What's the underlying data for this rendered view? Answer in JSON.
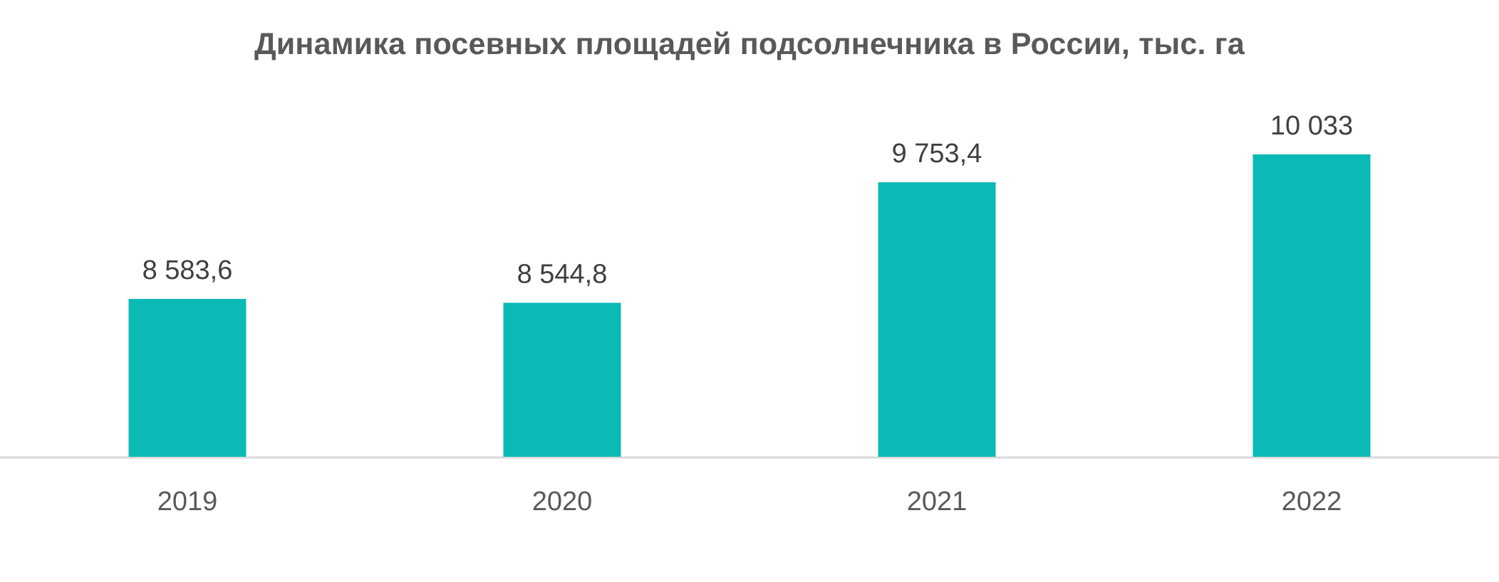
{
  "chart_data": {
    "type": "bar",
    "title": "Динамика посевных площадей подсолнечника в России, тыс. га",
    "categories": [
      "2019",
      "2020",
      "2021",
      "2022"
    ],
    "values": [
      8583.6,
      8544.8,
      9753.4,
      10033
    ],
    "value_labels": [
      "8 583,6",
      "8 544,8",
      "9 753,4",
      "10 033"
    ],
    "xlabel": "",
    "ylabel": "",
    "ylim": [
      7000,
      10500
    ],
    "grid": false,
    "legend": "none",
    "colors": {
      "bar": "#0BBAB5",
      "axis": "#D9D9D9",
      "title": "#595959",
      "label": "#404040",
      "tick": "#595959"
    }
  }
}
